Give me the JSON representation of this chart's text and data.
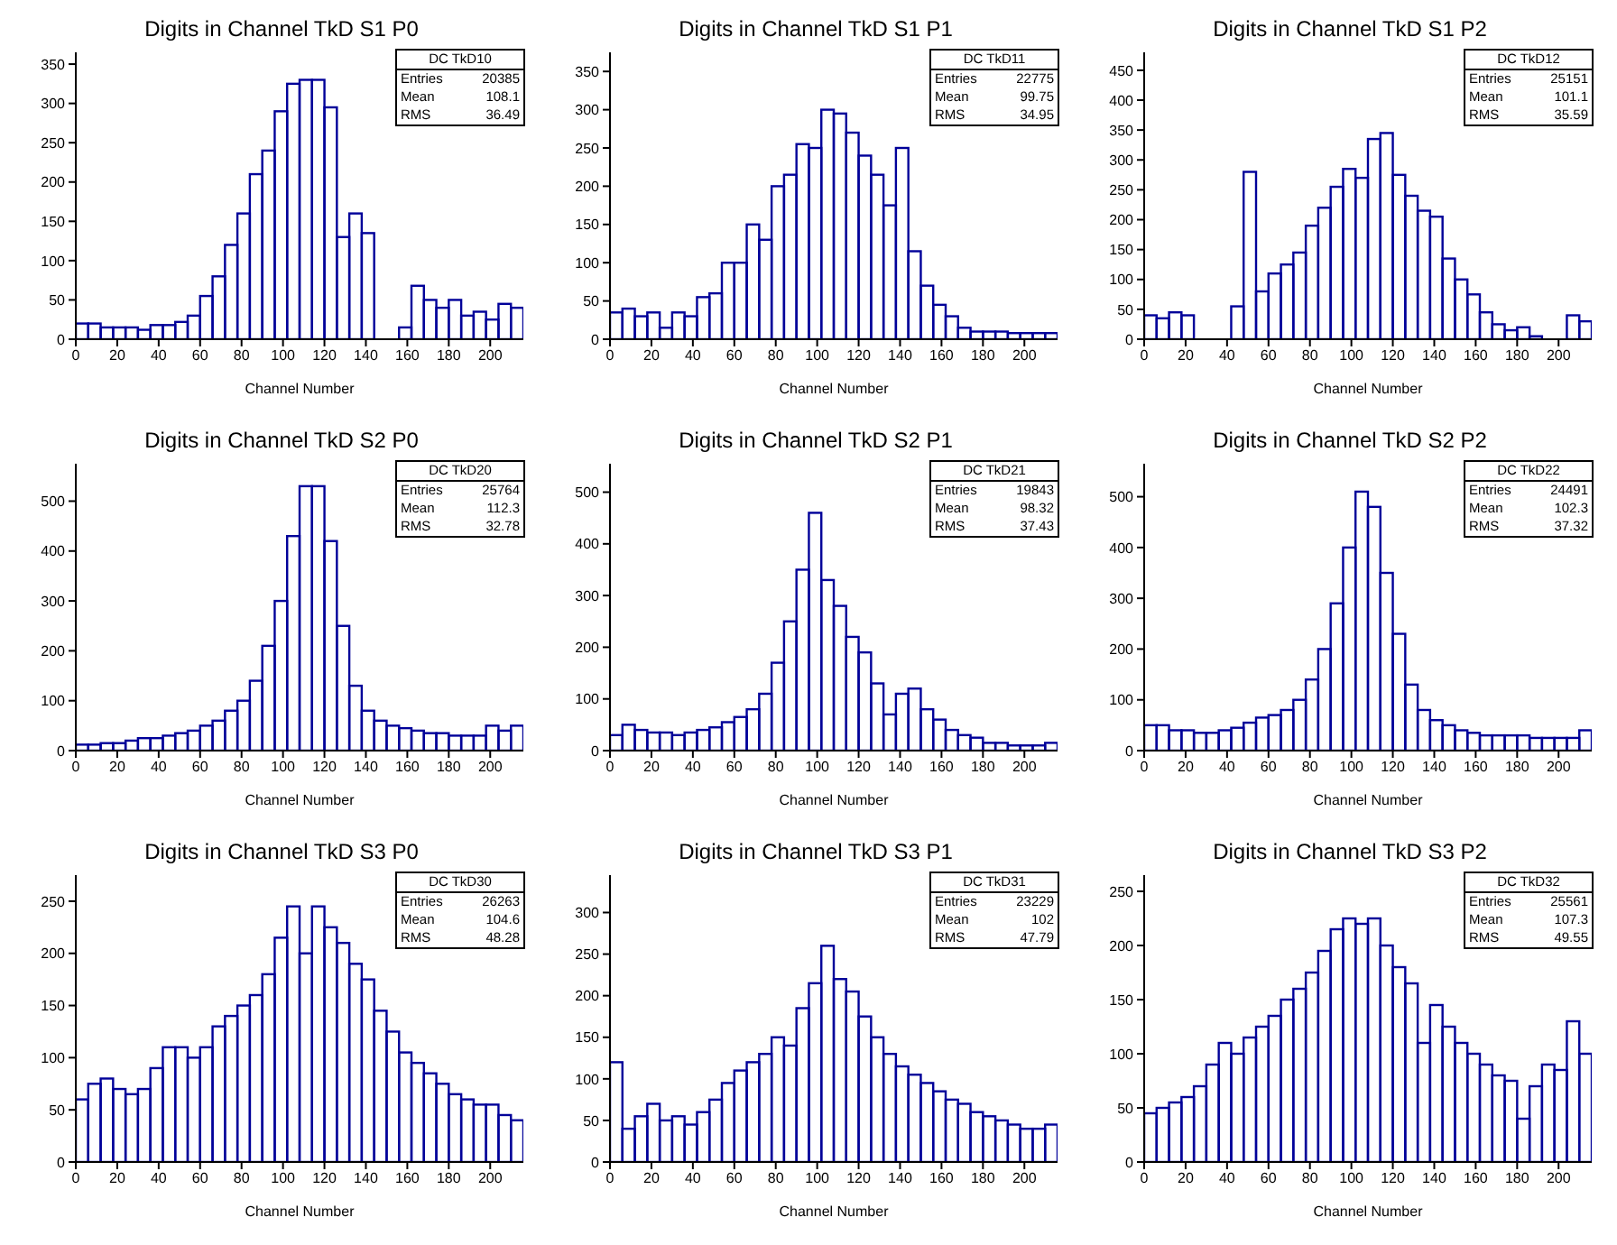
{
  "chart_data": [
    {
      "type": "histogram",
      "title": "Digits in Channel TkD S1 P0",
      "xlabel": "Channel Number",
      "color": "#000099",
      "xlim": [
        0,
        216
      ],
      "xticks": [
        0,
        20,
        40,
        60,
        80,
        100,
        120,
        140,
        160,
        180,
        200
      ],
      "ylim": [
        0,
        365
      ],
      "yticks": [
        0,
        50,
        100,
        150,
        200,
        250,
        300,
        350
      ],
      "bins": [
        0,
        6,
        12,
        18,
        24,
        30,
        36,
        42,
        48,
        54,
        60,
        66,
        72,
        78,
        84,
        90,
        96,
        102,
        108,
        114,
        120,
        126,
        132,
        138,
        144,
        150,
        156,
        162,
        168,
        174,
        180,
        186,
        192,
        198,
        204,
        210,
        216
      ],
      "values": [
        20,
        20,
        15,
        15,
        15,
        12,
        18,
        18,
        22,
        30,
        55,
        80,
        120,
        160,
        210,
        240,
        290,
        325,
        330,
        330,
        295,
        130,
        160,
        135,
        0,
        0,
        15,
        68,
        50,
        40,
        50,
        30,
        35,
        25,
        45,
        40
      ],
      "annotations": [
        "DC TkD10",
        "Entries",
        "20385",
        "Mean",
        "108.1",
        "RMS",
        "36.49"
      ]
    },
    {
      "type": "histogram",
      "title": "Digits in Channel TkD S1 P1",
      "xlabel": "Channel Number",
      "color": "#000099",
      "xlim": [
        0,
        216
      ],
      "xticks": [
        0,
        20,
        40,
        60,
        80,
        100,
        120,
        140,
        160,
        180,
        200
      ],
      "ylim": [
        0,
        375
      ],
      "yticks": [
        0,
        50,
        100,
        150,
        200,
        250,
        300,
        350
      ],
      "bins": [
        0,
        6,
        12,
        18,
        24,
        30,
        36,
        42,
        48,
        54,
        60,
        66,
        72,
        78,
        84,
        90,
        96,
        102,
        108,
        114,
        120,
        126,
        132,
        138,
        144,
        150,
        156,
        162,
        168,
        174,
        180,
        186,
        192,
        198,
        204,
        210,
        216
      ],
      "values": [
        35,
        40,
        30,
        35,
        15,
        35,
        30,
        55,
        60,
        100,
        100,
        150,
        130,
        200,
        215,
        255,
        250,
        300,
        295,
        270,
        240,
        215,
        175,
        250,
        115,
        70,
        45,
        30,
        15,
        10,
        10,
        10,
        8,
        8,
        8,
        8
      ],
      "annotations": [
        "DC TkD11",
        "Entries",
        "22775",
        "Mean",
        "99.75",
        "RMS",
        "34.95"
      ]
    },
    {
      "type": "histogram",
      "title": "Digits in Channel TkD S1 P2",
      "xlabel": "Channel Number",
      "color": "#000099",
      "xlim": [
        0,
        216
      ],
      "xticks": [
        0,
        20,
        40,
        60,
        80,
        100,
        120,
        140,
        160,
        180,
        200
      ],
      "ylim": [
        0,
        480
      ],
      "yticks": [
        0,
        50,
        100,
        150,
        200,
        250,
        300,
        350,
        400,
        450
      ],
      "bins": [
        0,
        6,
        12,
        18,
        24,
        30,
        36,
        42,
        48,
        54,
        60,
        66,
        72,
        78,
        84,
        90,
        96,
        102,
        108,
        114,
        120,
        126,
        132,
        138,
        144,
        150,
        156,
        162,
        168,
        174,
        180,
        186,
        192,
        198,
        204,
        210,
        216
      ],
      "values": [
        40,
        35,
        45,
        40,
        0,
        0,
        0,
        55,
        280,
        80,
        110,
        125,
        145,
        190,
        220,
        255,
        285,
        270,
        335,
        345,
        275,
        240,
        215,
        205,
        135,
        100,
        75,
        45,
        25,
        15,
        20,
        5,
        0,
        0,
        40,
        30
      ],
      "annotations": [
        "DC TkD12",
        "Entries",
        "25151",
        "Mean",
        "101.1",
        "RMS",
        "35.59"
      ]
    },
    {
      "type": "histogram",
      "title": "Digits in Channel TkD S2 P0",
      "xlabel": "Channel Number",
      "color": "#000099",
      "xlim": [
        0,
        216
      ],
      "xticks": [
        0,
        20,
        40,
        60,
        80,
        100,
        120,
        140,
        160,
        180,
        200
      ],
      "ylim": [
        0,
        575
      ],
      "yticks": [
        0,
        100,
        200,
        300,
        400,
        500
      ],
      "bins": [
        0,
        6,
        12,
        18,
        24,
        30,
        36,
        42,
        48,
        54,
        60,
        66,
        72,
        78,
        84,
        90,
        96,
        102,
        108,
        114,
        120,
        126,
        132,
        138,
        144,
        150,
        156,
        162,
        168,
        174,
        180,
        186,
        192,
        198,
        204,
        210,
        216
      ],
      "values": [
        12,
        12,
        15,
        15,
        20,
        25,
        25,
        30,
        35,
        40,
        50,
        60,
        80,
        100,
        140,
        210,
        300,
        430,
        530,
        530,
        420,
        250,
        130,
        80,
        60,
        50,
        45,
        40,
        35,
        35,
        30,
        30,
        30,
        50,
        40,
        50
      ],
      "annotations": [
        "DC TkD20",
        "Entries",
        "25764",
        "Mean",
        "112.3",
        "RMS",
        "32.78"
      ]
    },
    {
      "type": "histogram",
      "title": "Digits in Channel TkD S2 P1",
      "xlabel": "Channel Number",
      "color": "#000099",
      "xlim": [
        0,
        216
      ],
      "xticks": [
        0,
        20,
        40,
        60,
        80,
        100,
        120,
        140,
        160,
        180,
        200
      ],
      "ylim": [
        0,
        555
      ],
      "yticks": [
        0,
        100,
        200,
        300,
        400,
        500
      ],
      "bins": [
        0,
        6,
        12,
        18,
        24,
        30,
        36,
        42,
        48,
        54,
        60,
        66,
        72,
        78,
        84,
        90,
        96,
        102,
        108,
        114,
        120,
        126,
        132,
        138,
        144,
        150,
        156,
        162,
        168,
        174,
        180,
        186,
        192,
        198,
        204,
        210,
        216
      ],
      "values": [
        30,
        50,
        40,
        35,
        35,
        30,
        35,
        40,
        45,
        55,
        65,
        80,
        110,
        170,
        250,
        350,
        460,
        330,
        280,
        220,
        190,
        130,
        70,
        110,
        120,
        80,
        60,
        40,
        30,
        25,
        15,
        15,
        10,
        10,
        10,
        15
      ],
      "annotations": [
        "DC TkD21",
        "Entries",
        "19843",
        "Mean",
        "98.32",
        "RMS",
        "37.43"
      ]
    },
    {
      "type": "histogram",
      "title": "Digits in Channel TkD S2 P2",
      "xlabel": "Channel Number",
      "color": "#000099",
      "xlim": [
        0,
        216
      ],
      "xticks": [
        0,
        20,
        40,
        60,
        80,
        100,
        120,
        140,
        160,
        180,
        200
      ],
      "ylim": [
        0,
        565
      ],
      "yticks": [
        0,
        100,
        200,
        300,
        400,
        500
      ],
      "bins": [
        0,
        6,
        12,
        18,
        24,
        30,
        36,
        42,
        48,
        54,
        60,
        66,
        72,
        78,
        84,
        90,
        96,
        102,
        108,
        114,
        120,
        126,
        132,
        138,
        144,
        150,
        156,
        162,
        168,
        174,
        180,
        186,
        192,
        198,
        204,
        210,
        216
      ],
      "values": [
        50,
        50,
        40,
        40,
        35,
        35,
        40,
        45,
        55,
        65,
        70,
        80,
        100,
        140,
        200,
        290,
        400,
        510,
        480,
        350,
        230,
        130,
        80,
        60,
        50,
        40,
        35,
        30,
        30,
        30,
        30,
        25,
        25,
        25,
        25,
        40
      ],
      "annotations": [
        "DC TkD22",
        "Entries",
        "24491",
        "Mean",
        "102.3",
        "RMS",
        "37.32"
      ]
    },
    {
      "type": "histogram",
      "title": "Digits in Channel TkD S3 P0",
      "xlabel": "Channel Number",
      "color": "#000099",
      "xlim": [
        0,
        216
      ],
      "xticks": [
        0,
        20,
        40,
        60,
        80,
        100,
        120,
        140,
        160,
        180,
        200
      ],
      "ylim": [
        0,
        275
      ],
      "yticks": [
        0,
        50,
        100,
        150,
        200,
        250
      ],
      "bins": [
        0,
        6,
        12,
        18,
        24,
        30,
        36,
        42,
        48,
        54,
        60,
        66,
        72,
        78,
        84,
        90,
        96,
        102,
        108,
        114,
        120,
        126,
        132,
        138,
        144,
        150,
        156,
        162,
        168,
        174,
        180,
        186,
        192,
        198,
        204,
        210,
        216
      ],
      "values": [
        60,
        75,
        80,
        70,
        65,
        70,
        90,
        110,
        110,
        100,
        110,
        130,
        140,
        150,
        160,
        180,
        215,
        245,
        200,
        245,
        225,
        210,
        190,
        175,
        145,
        125,
        105,
        95,
        85,
        75,
        65,
        60,
        55,
        55,
        45,
        40
      ],
      "annotations": [
        "DC TkD30",
        "Entries",
        "26263",
        "Mean",
        "104.6",
        "RMS",
        "48.28"
      ]
    },
    {
      "type": "histogram",
      "title": "Digits in Channel TkD S3 P1",
      "xlabel": "Channel Number",
      "color": "#000099",
      "xlim": [
        0,
        216
      ],
      "xticks": [
        0,
        20,
        40,
        60,
        80,
        100,
        120,
        140,
        160,
        180,
        200
      ],
      "ylim": [
        0,
        345
      ],
      "yticks": [
        0,
        50,
        100,
        150,
        200,
        250,
        300
      ],
      "bins": [
        0,
        6,
        12,
        18,
        24,
        30,
        36,
        42,
        48,
        54,
        60,
        66,
        72,
        78,
        84,
        90,
        96,
        102,
        108,
        114,
        120,
        126,
        132,
        138,
        144,
        150,
        156,
        162,
        168,
        174,
        180,
        186,
        192,
        198,
        204,
        210,
        216
      ],
      "values": [
        120,
        40,
        55,
        70,
        50,
        55,
        45,
        60,
        75,
        95,
        110,
        120,
        130,
        150,
        140,
        185,
        215,
        260,
        220,
        205,
        175,
        150,
        130,
        115,
        105,
        95,
        85,
        75,
        70,
        60,
        55,
        50,
        45,
        40,
        40,
        45
      ],
      "annotations": [
        "DC TkD31",
        "Entries",
        "23229",
        "Mean",
        "102",
        "RMS",
        "47.79"
      ]
    },
    {
      "type": "histogram",
      "title": "Digits in Channel TkD S3 P2",
      "xlabel": "Channel Number",
      "color": "#000099",
      "xlim": [
        0,
        216
      ],
      "xticks": [
        0,
        20,
        40,
        60,
        80,
        100,
        120,
        140,
        160,
        180,
        200
      ],
      "ylim": [
        0,
        265
      ],
      "yticks": [
        0,
        50,
        100,
        150,
        200,
        250
      ],
      "bins": [
        0,
        6,
        12,
        18,
        24,
        30,
        36,
        42,
        48,
        54,
        60,
        66,
        72,
        78,
        84,
        90,
        96,
        102,
        108,
        114,
        120,
        126,
        132,
        138,
        144,
        150,
        156,
        162,
        168,
        174,
        180,
        186,
        192,
        198,
        204,
        210,
        216
      ],
      "values": [
        45,
        50,
        55,
        60,
        70,
        90,
        110,
        100,
        115,
        125,
        135,
        150,
        160,
        175,
        195,
        215,
        225,
        220,
        225,
        200,
        180,
        165,
        110,
        145,
        125,
        110,
        100,
        90,
        80,
        75,
        40,
        70,
        90,
        85,
        130,
        100
      ],
      "annotations": [
        "DC TkD32",
        "Entries",
        "25561",
        "Mean",
        "107.3",
        "RMS",
        "49.55"
      ]
    }
  ]
}
